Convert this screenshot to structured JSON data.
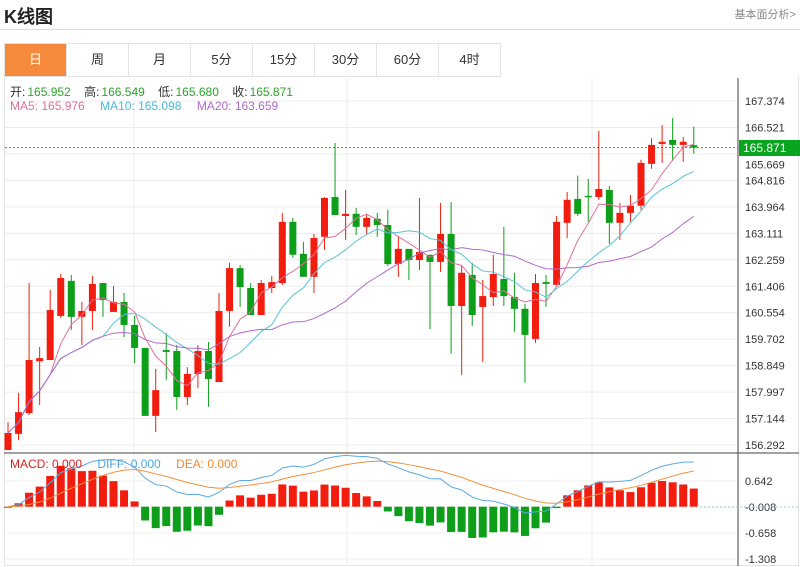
{
  "header": {
    "title": "K线图",
    "link": "基本面分析>"
  },
  "tabs": [
    {
      "label": "日",
      "active": true
    },
    {
      "label": "周"
    },
    {
      "label": "月"
    },
    {
      "label": "5分"
    },
    {
      "label": "15分"
    },
    {
      "label": "30分"
    },
    {
      "label": "60分"
    },
    {
      "label": "4时"
    }
  ],
  "ohlc": {
    "open_label": "开:",
    "open": "165.952",
    "high_label": "高:",
    "high": "166.549",
    "low_label": "低:",
    "low": "165.680",
    "close_label": "收:",
    "close": "165.871"
  },
  "ma": {
    "ma5": "MA5: 165.976",
    "ma10": "MA10: 165.098",
    "ma20": "MA20: 163.659"
  },
  "macd_legend": {
    "macd": "MACD: 0.000",
    "diff": "DIFF: 0.000",
    "dea": "DEA: 0.000"
  },
  "current_price": "165.871",
  "colors": {
    "up": "#f21d0f",
    "down": "#0d9e1a",
    "ma5": "#e0709a",
    "ma10": "#5bc3d6",
    "ma20": "#b169c8",
    "diff": "#5aa9e6",
    "dea": "#f0923c",
    "active_tab": "#f58a3c"
  },
  "chart_data": {
    "type": "candlestick",
    "price_axis": {
      "ticks": [
        "167.374",
        "166.521",
        "165.669",
        "164.816",
        "163.964",
        "163.111",
        "162.259",
        "161.406",
        "160.554",
        "159.702",
        "158.849",
        "157.997",
        "157.144",
        "156.292"
      ],
      "range": [
        156.292,
        167.374
      ]
    },
    "macd_axis": {
      "ticks": [
        "0.642",
        "-0.008",
        "-0.658",
        "-1.308"
      ],
      "range": [
        -1.308,
        0.642
      ]
    },
    "candles": [
      [
        156.13,
        157.03,
        156.13,
        156.68
      ],
      [
        156.65,
        157.97,
        156.45,
        157.35
      ],
      [
        157.32,
        161.51,
        157.26,
        159.03
      ],
      [
        158.99,
        159.45,
        157.58,
        159.09
      ],
      [
        159.03,
        161.29,
        159.03,
        160.64
      ],
      [
        160.45,
        161.8,
        160.38,
        161.67
      ],
      [
        161.58,
        161.77,
        160.0,
        160.42
      ],
      [
        160.42,
        160.9,
        159.51,
        160.61
      ],
      [
        160.61,
        161.74,
        160.0,
        161.48
      ],
      [
        161.51,
        161.51,
        160.42,
        160.96
      ],
      [
        160.58,
        161.41,
        160.58,
        160.9
      ],
      [
        160.9,
        161.19,
        159.77,
        160.16
      ],
      [
        160.16,
        160.45,
        158.93,
        159.42
      ],
      [
        159.42,
        159.42,
        157.23,
        157.23
      ],
      [
        157.23,
        158.74,
        156.71,
        158.06
      ],
      [
        159.35,
        159.9,
        158.39,
        159.29
      ],
      [
        159.32,
        159.51,
        157.42,
        157.84
      ],
      [
        157.84,
        158.8,
        157.58,
        158.58
      ],
      [
        158.58,
        159.51,
        158.13,
        159.32
      ],
      [
        159.32,
        159.61,
        157.52,
        158.42
      ],
      [
        158.32,
        161.19,
        158.32,
        160.61
      ],
      [
        160.61,
        162.16,
        160.1,
        161.99
      ],
      [
        161.99,
        162.09,
        160.74,
        161.38
      ],
      [
        161.35,
        161.51,
        160.48,
        160.48
      ],
      [
        160.48,
        161.61,
        160.48,
        161.51
      ],
      [
        161.35,
        161.74,
        161.19,
        161.54
      ],
      [
        161.51,
        163.77,
        161.45,
        163.48
      ],
      [
        163.48,
        163.61,
        162.32,
        162.42
      ],
      [
        162.45,
        162.84,
        161.71,
        161.71
      ],
      [
        161.71,
        163.09,
        161.19,
        162.96
      ],
      [
        163.0,
        164.28,
        162.58,
        164.25
      ],
      [
        164.28,
        166.02,
        163.7,
        163.7
      ],
      [
        163.67,
        164.51,
        162.9,
        163.74
      ],
      [
        163.74,
        163.93,
        163.06,
        163.32
      ],
      [
        163.32,
        163.74,
        163.09,
        163.61
      ],
      [
        163.58,
        163.77,
        163.0,
        163.38
      ],
      [
        163.38,
        163.87,
        162.06,
        162.12
      ],
      [
        162.12,
        163.0,
        161.71,
        162.61
      ],
      [
        162.61,
        162.61,
        161.61,
        162.25
      ],
      [
        162.25,
        164.25,
        161.93,
        162.51
      ],
      [
        162.42,
        162.42,
        160.03,
        162.19
      ],
      [
        162.19,
        164.09,
        161.87,
        163.09
      ],
      [
        163.09,
        164.12,
        159.23,
        160.77
      ],
      [
        160.77,
        162.06,
        158.55,
        161.84
      ],
      [
        161.77,
        162.16,
        160.13,
        160.48
      ],
      [
        160.74,
        161.61,
        158.97,
        161.09
      ],
      [
        161.06,
        162.42,
        160.77,
        161.8
      ],
      [
        161.64,
        163.32,
        160.77,
        161.09
      ],
      [
        161.06,
        161.84,
        159.94,
        160.68
      ],
      [
        160.68,
        160.84,
        158.3,
        159.84
      ],
      [
        159.71,
        161.8,
        159.58,
        161.51
      ],
      [
        161.54,
        161.77,
        160.74,
        161.48
      ],
      [
        161.45,
        163.67,
        161.45,
        163.48
      ],
      [
        163.45,
        164.44,
        162.96,
        164.19
      ],
      [
        164.22,
        164.97,
        163.67,
        163.74
      ],
      [
        164.32,
        164.86,
        163.48,
        164.28
      ],
      [
        164.28,
        166.41,
        164.19,
        164.54
      ],
      [
        164.51,
        164.64,
        162.77,
        163.45
      ],
      [
        163.45,
        164.09,
        162.9,
        163.77
      ],
      [
        163.77,
        164.35,
        163.48,
        164.0
      ],
      [
        164.0,
        165.48,
        163.87,
        165.38
      ],
      [
        165.35,
        166.18,
        165.19,
        165.96
      ],
      [
        165.99,
        166.6,
        165.38,
        166.06
      ],
      [
        166.12,
        166.83,
        165.44,
        165.96
      ],
      [
        165.96,
        166.22,
        165.41,
        166.06
      ],
      [
        165.952,
        166.549,
        165.68,
        165.871
      ]
    ]
  }
}
